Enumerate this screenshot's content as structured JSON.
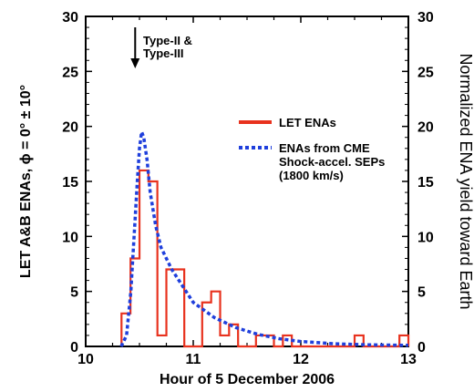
{
  "chart_data": {
    "type": "line",
    "title": "",
    "xlabel": "Hour of 5 December 2006",
    "ylabel_left": "LET A&B ENAs, ϕ = 0° ± 10°",
    "ylabel_right": "Normalized ENA yield toward Earth",
    "xlim": [
      10,
      13
    ],
    "ylim": [
      0,
      30
    ],
    "xticks": [
      10,
      11,
      12,
      13
    ],
    "yticks": [
      0,
      5,
      10,
      15,
      20,
      25,
      30
    ],
    "grid": false,
    "legend_position": "right",
    "annotation": {
      "lines": [
        "Type-II &",
        "Type-III"
      ],
      "x": 10.46
    },
    "series": [
      {
        "name": "LET ENAs",
        "style": "step",
        "color": "#e8321e",
        "bin_width": 0.083333,
        "x": [
          10.333,
          10.417,
          10.5,
          10.583,
          10.667,
          10.75,
          10.833,
          10.917,
          11.0,
          11.083,
          11.167,
          11.25,
          11.333,
          11.417,
          11.5,
          11.583,
          11.667,
          11.75,
          11.833,
          11.917,
          12.0,
          12.083,
          12.167,
          12.25,
          12.333,
          12.417,
          12.5,
          12.583,
          12.667,
          12.75,
          12.833,
          12.917
        ],
        "y": [
          3,
          8,
          16,
          15,
          1,
          7,
          7,
          0,
          0,
          4,
          5,
          1,
          2,
          0,
          0,
          1,
          1,
          0,
          1,
          0,
          0,
          0,
          0,
          0,
          0,
          0,
          1,
          0,
          0,
          0,
          0,
          1
        ]
      },
      {
        "name": "ENAs from CME Shock-accel. SEPs (1800 km/s)",
        "style": "dashed",
        "color": "#1f3fdc",
        "x": [
          10.33,
          10.38,
          10.42,
          10.45,
          10.48,
          10.5,
          10.52,
          10.54,
          10.57,
          10.6,
          10.65,
          10.7,
          10.8,
          10.9,
          11.0,
          11.2,
          11.4,
          11.6,
          11.8,
          12.0,
          12.3,
          12.6,
          13.0
        ],
        "y": [
          0,
          1,
          5,
          10,
          15,
          18,
          19.5,
          19,
          17,
          14,
          11,
          9,
          7,
          5.5,
          4,
          2.6,
          1.7,
          1.1,
          0.7,
          0.45,
          0.25,
          0.15,
          0.1
        ]
      }
    ]
  }
}
